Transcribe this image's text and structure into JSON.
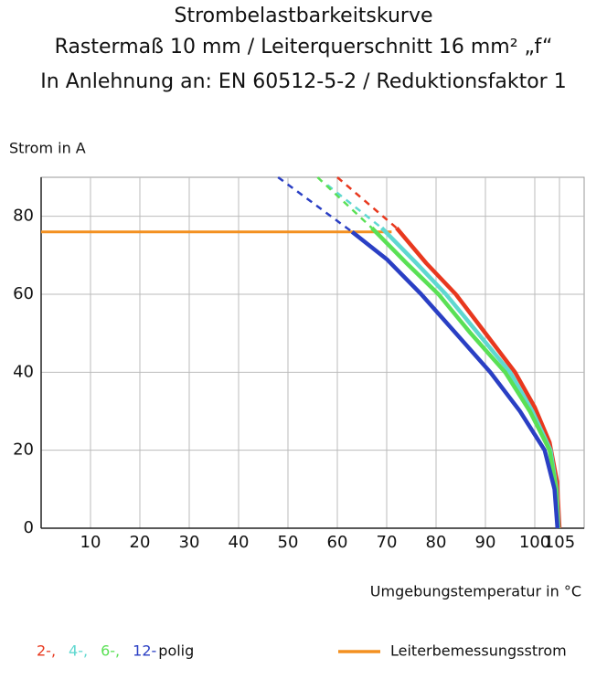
{
  "chart_data": {
    "type": "line",
    "title": [
      "Strombelastbarkeitskurve",
      "Rastermaß 10 mm / Leiterquerschnitt 16 mm² „f“",
      "In Anlehnung an: EN 60512-5-2 / Reduktionsfaktor 1"
    ],
    "ylabel": "Strom in A",
    "xlabel": "Umgebungstemperatur in °C",
    "xlim": [
      0,
      110
    ],
    "xticks": [
      10,
      20,
      30,
      40,
      50,
      60,
      70,
      80,
      90,
      100,
      105
    ],
    "ylim": [
      0,
      90
    ],
    "yticks": [
      0,
      20,
      40,
      60,
      80
    ],
    "grid": true,
    "legend_suffix": "polig",
    "series": [
      {
        "name": "2-,",
        "color": "#e8381e",
        "dashed_x": [
          60,
          72
        ],
        "dashed_values": [
          90,
          77
        ],
        "x": [
          72,
          78,
          84,
          90,
          96,
          100,
          103,
          104.5,
          105
        ],
        "values": [
          77,
          68,
          60,
          50,
          40,
          31,
          22,
          12,
          0
        ]
      },
      {
        "name": "4-,",
        "color": "#5fd8d0",
        "dashed_x": [
          58,
          69
        ],
        "dashed_values": [
          88,
          77
        ],
        "x": [
          69,
          76,
          82,
          88.5,
          95,
          99.5,
          103.2,
          104.4,
          104.8
        ],
        "values": [
          77,
          68,
          60,
          50,
          40,
          30,
          20,
          10,
          0
        ]
      },
      {
        "name": "6-,",
        "color": "#5ae055",
        "dashed_x": [
          56,
          67
        ],
        "dashed_values": [
          90,
          77
        ],
        "x": [
          67,
          74,
          80.5,
          87,
          94,
          99,
          103,
          104.3,
          104.7
        ],
        "values": [
          77,
          68,
          60,
          50,
          40,
          30,
          20,
          10,
          0
        ]
      },
      {
        "name": "12-",
        "color": "#2a3fc4",
        "dashed_x": [
          48,
          63
        ],
        "dashed_values": [
          90,
          76
        ],
        "x": [
          63,
          70,
          77,
          84,
          91,
          97,
          102,
          104,
          104.6
        ],
        "values": [
          76,
          69,
          60,
          50,
          40,
          30,
          20,
          10,
          0
        ]
      }
    ],
    "rated_current": {
      "name": "Leiterbemessungsstrom",
      "color": "#f39020",
      "x": [
        0,
        71
      ],
      "values": [
        76,
        76
      ]
    }
  }
}
